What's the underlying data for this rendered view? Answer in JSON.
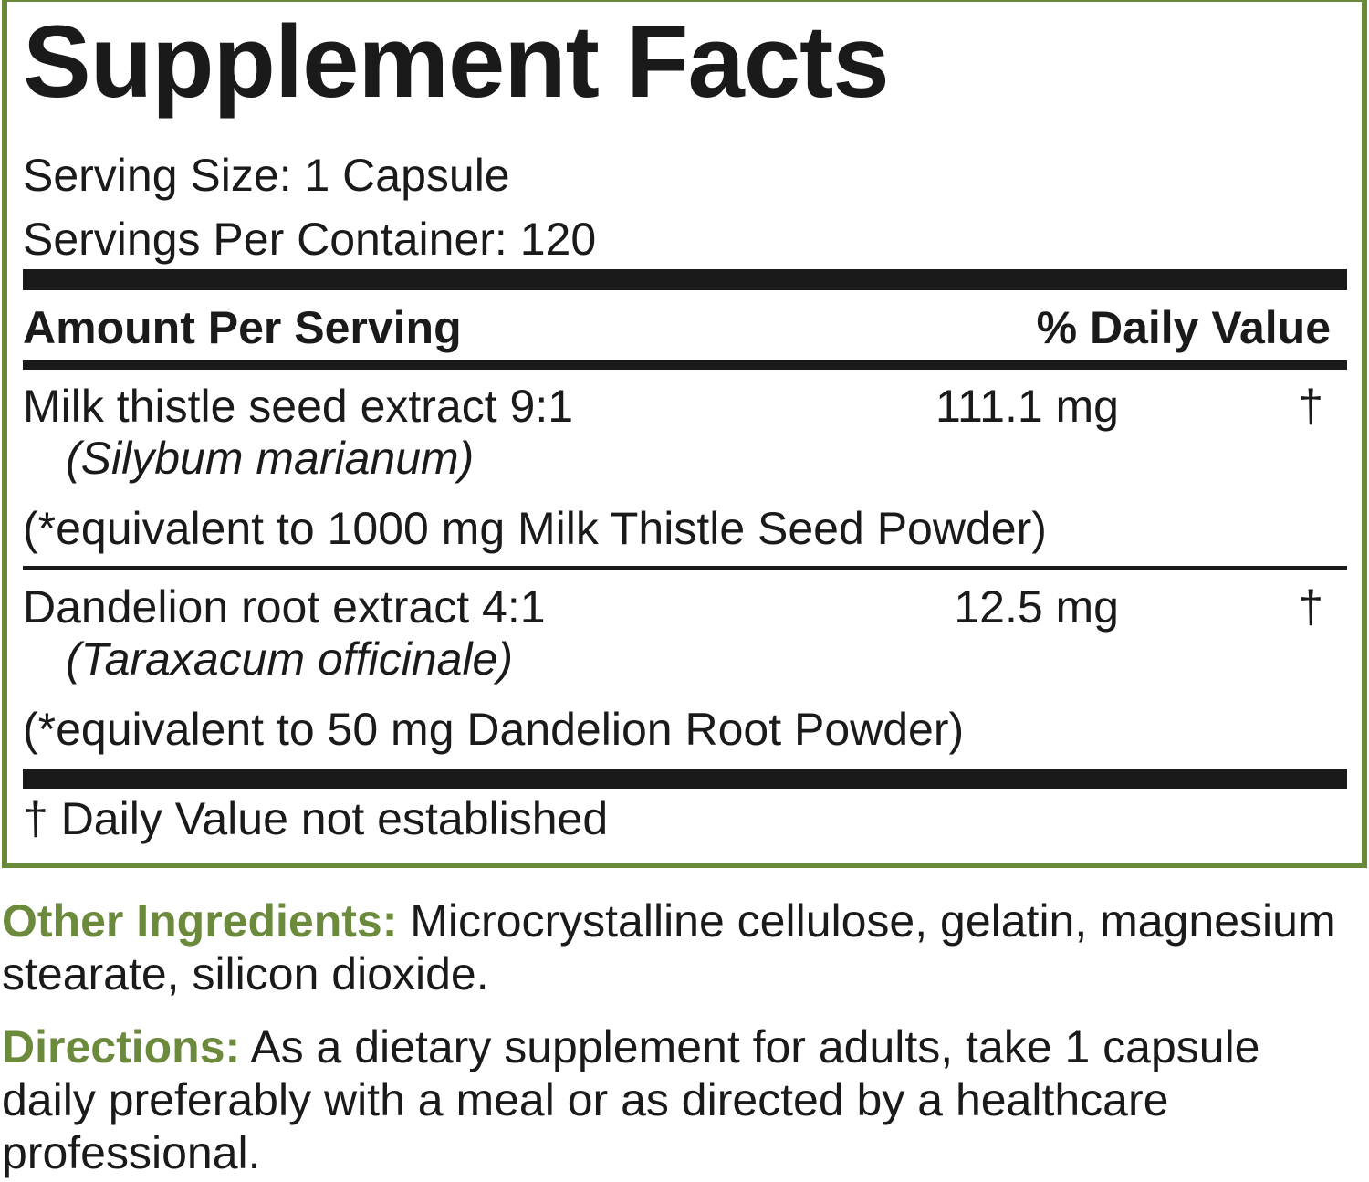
{
  "panel": {
    "title": "Supplement Facts",
    "serving_size": "Serving Size: 1 Capsule",
    "servings_per_container": "Servings Per Container: 120",
    "header": {
      "amount": "Amount Per Serving",
      "daily_value": "% Daily Value"
    },
    "rows": [
      {
        "name": "Milk thistle seed extract 9:1",
        "latin": "(Silybum marianum)",
        "amount": "111.1 mg",
        "daily_value": "†",
        "note": "(*equivalent to 1000 mg Milk Thistle Seed Powder)"
      },
      {
        "name": "Dandelion root extract 4:1",
        "latin": "(Taraxacum officinale)",
        "amount": "12.5 mg",
        "daily_value": "†",
        "note": "(*equivalent to 50 mg Dandelion Root Powder)"
      }
    ],
    "footnote": "† Daily Value not established"
  },
  "other_ingredients": {
    "label": "Other Ingredients:",
    "text": "Microcrystalline cellulose, gelatin, magnesium stearate, silicon dioxide."
  },
  "directions": {
    "label": "Directions:",
    "text": "As a dietary supplement for adults, take 1 capsule daily preferably with a meal or as directed by a healthcare professional."
  }
}
